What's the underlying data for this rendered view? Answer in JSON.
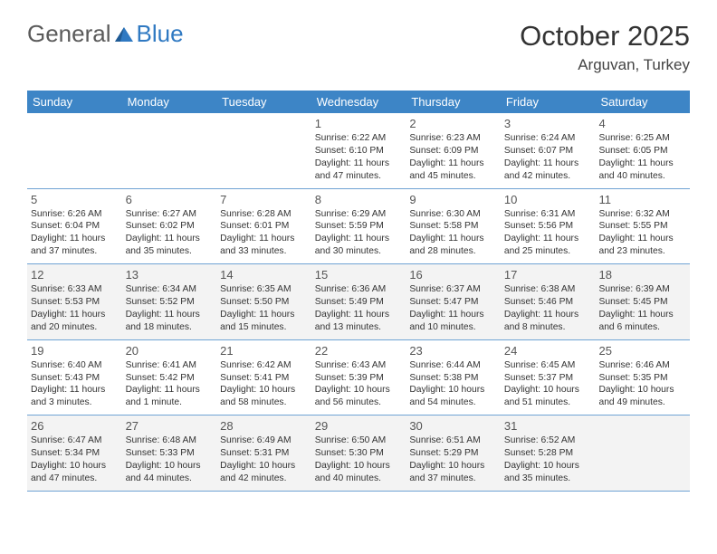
{
  "logo": {
    "text1": "General",
    "text2": "Blue"
  },
  "title": "October 2025",
  "location": "Arguvan, Turkey",
  "header_bg": "#3d85c6",
  "border_color": "#6fa3d4",
  "muted_bg": "#f3f3f3",
  "text_color": "#333333",
  "dow": [
    "Sunday",
    "Monday",
    "Tuesday",
    "Wednesday",
    "Thursday",
    "Friday",
    "Saturday"
  ],
  "weeks": [
    [
      {
        "n": "",
        "sr": "",
        "ss": "",
        "dl": ""
      },
      {
        "n": "",
        "sr": "",
        "ss": "",
        "dl": ""
      },
      {
        "n": "",
        "sr": "",
        "ss": "",
        "dl": ""
      },
      {
        "n": "1",
        "sr": "Sunrise: 6:22 AM",
        "ss": "Sunset: 6:10 PM",
        "dl": "Daylight: 11 hours and 47 minutes."
      },
      {
        "n": "2",
        "sr": "Sunrise: 6:23 AM",
        "ss": "Sunset: 6:09 PM",
        "dl": "Daylight: 11 hours and 45 minutes."
      },
      {
        "n": "3",
        "sr": "Sunrise: 6:24 AM",
        "ss": "Sunset: 6:07 PM",
        "dl": "Daylight: 11 hours and 42 minutes."
      },
      {
        "n": "4",
        "sr": "Sunrise: 6:25 AM",
        "ss": "Sunset: 6:05 PM",
        "dl": "Daylight: 11 hours and 40 minutes."
      }
    ],
    [
      {
        "n": "5",
        "sr": "Sunrise: 6:26 AM",
        "ss": "Sunset: 6:04 PM",
        "dl": "Daylight: 11 hours and 37 minutes."
      },
      {
        "n": "6",
        "sr": "Sunrise: 6:27 AM",
        "ss": "Sunset: 6:02 PM",
        "dl": "Daylight: 11 hours and 35 minutes."
      },
      {
        "n": "7",
        "sr": "Sunrise: 6:28 AM",
        "ss": "Sunset: 6:01 PM",
        "dl": "Daylight: 11 hours and 33 minutes."
      },
      {
        "n": "8",
        "sr": "Sunrise: 6:29 AM",
        "ss": "Sunset: 5:59 PM",
        "dl": "Daylight: 11 hours and 30 minutes."
      },
      {
        "n": "9",
        "sr": "Sunrise: 6:30 AM",
        "ss": "Sunset: 5:58 PM",
        "dl": "Daylight: 11 hours and 28 minutes."
      },
      {
        "n": "10",
        "sr": "Sunrise: 6:31 AM",
        "ss": "Sunset: 5:56 PM",
        "dl": "Daylight: 11 hours and 25 minutes."
      },
      {
        "n": "11",
        "sr": "Sunrise: 6:32 AM",
        "ss": "Sunset: 5:55 PM",
        "dl": "Daylight: 11 hours and 23 minutes."
      }
    ],
    [
      {
        "n": "12",
        "sr": "Sunrise: 6:33 AM",
        "ss": "Sunset: 5:53 PM",
        "dl": "Daylight: 11 hours and 20 minutes."
      },
      {
        "n": "13",
        "sr": "Sunrise: 6:34 AM",
        "ss": "Sunset: 5:52 PM",
        "dl": "Daylight: 11 hours and 18 minutes."
      },
      {
        "n": "14",
        "sr": "Sunrise: 6:35 AM",
        "ss": "Sunset: 5:50 PM",
        "dl": "Daylight: 11 hours and 15 minutes."
      },
      {
        "n": "15",
        "sr": "Sunrise: 6:36 AM",
        "ss": "Sunset: 5:49 PM",
        "dl": "Daylight: 11 hours and 13 minutes."
      },
      {
        "n": "16",
        "sr": "Sunrise: 6:37 AM",
        "ss": "Sunset: 5:47 PM",
        "dl": "Daylight: 11 hours and 10 minutes."
      },
      {
        "n": "17",
        "sr": "Sunrise: 6:38 AM",
        "ss": "Sunset: 5:46 PM",
        "dl": "Daylight: 11 hours and 8 minutes."
      },
      {
        "n": "18",
        "sr": "Sunrise: 6:39 AM",
        "ss": "Sunset: 5:45 PM",
        "dl": "Daylight: 11 hours and 6 minutes."
      }
    ],
    [
      {
        "n": "19",
        "sr": "Sunrise: 6:40 AM",
        "ss": "Sunset: 5:43 PM",
        "dl": "Daylight: 11 hours and 3 minutes."
      },
      {
        "n": "20",
        "sr": "Sunrise: 6:41 AM",
        "ss": "Sunset: 5:42 PM",
        "dl": "Daylight: 11 hours and 1 minute."
      },
      {
        "n": "21",
        "sr": "Sunrise: 6:42 AM",
        "ss": "Sunset: 5:41 PM",
        "dl": "Daylight: 10 hours and 58 minutes."
      },
      {
        "n": "22",
        "sr": "Sunrise: 6:43 AM",
        "ss": "Sunset: 5:39 PM",
        "dl": "Daylight: 10 hours and 56 minutes."
      },
      {
        "n": "23",
        "sr": "Sunrise: 6:44 AM",
        "ss": "Sunset: 5:38 PM",
        "dl": "Daylight: 10 hours and 54 minutes."
      },
      {
        "n": "24",
        "sr": "Sunrise: 6:45 AM",
        "ss": "Sunset: 5:37 PM",
        "dl": "Daylight: 10 hours and 51 minutes."
      },
      {
        "n": "25",
        "sr": "Sunrise: 6:46 AM",
        "ss": "Sunset: 5:35 PM",
        "dl": "Daylight: 10 hours and 49 minutes."
      }
    ],
    [
      {
        "n": "26",
        "sr": "Sunrise: 6:47 AM",
        "ss": "Sunset: 5:34 PM",
        "dl": "Daylight: 10 hours and 47 minutes."
      },
      {
        "n": "27",
        "sr": "Sunrise: 6:48 AM",
        "ss": "Sunset: 5:33 PM",
        "dl": "Daylight: 10 hours and 44 minutes."
      },
      {
        "n": "28",
        "sr": "Sunrise: 6:49 AM",
        "ss": "Sunset: 5:31 PM",
        "dl": "Daylight: 10 hours and 42 minutes."
      },
      {
        "n": "29",
        "sr": "Sunrise: 6:50 AM",
        "ss": "Sunset: 5:30 PM",
        "dl": "Daylight: 10 hours and 40 minutes."
      },
      {
        "n": "30",
        "sr": "Sunrise: 6:51 AM",
        "ss": "Sunset: 5:29 PM",
        "dl": "Daylight: 10 hours and 37 minutes."
      },
      {
        "n": "31",
        "sr": "Sunrise: 6:52 AM",
        "ss": "Sunset: 5:28 PM",
        "dl": "Daylight: 10 hours and 35 minutes."
      },
      {
        "n": "",
        "sr": "",
        "ss": "",
        "dl": ""
      }
    ]
  ],
  "muted_rows": [
    2,
    4
  ]
}
